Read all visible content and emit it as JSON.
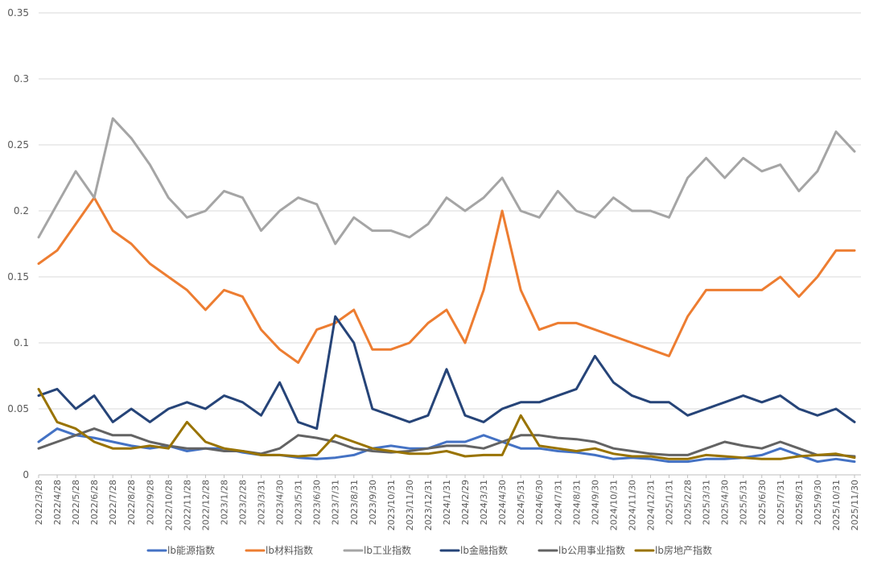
{
  "chart_data": {
    "type": "line",
    "title": "",
    "xlabel": "",
    "ylabel": "",
    "ylim": [
      0,
      0.35
    ],
    "yticks": [
      0,
      0.05,
      0.1,
      0.15,
      0.2,
      0.25,
      0.3,
      0.35
    ],
    "ytick_labels": [
      "0",
      "0.05",
      "0.1",
      "0.15",
      "0.2",
      "0.25",
      "0.3",
      "0.35"
    ],
    "x": [
      "2022/3/28",
      "2022/4/28",
      "2022/5/28",
      "2022/6/28",
      "2022/7/28",
      "2022/8/28",
      "2022/9/28",
      "2022/10/28",
      "2022/11/28",
      "2022/12/28",
      "2023/1/28",
      "2023/2/28",
      "2023/3/31",
      "2023/4/30",
      "2023/5/31",
      "2023/6/30",
      "2023/7/31",
      "2023/8/31",
      "2023/9/30",
      "2023/10/31",
      "2023/11/30",
      "2023/12/31",
      "2024/1/31",
      "2024/2/29",
      "2024/3/31",
      "2024/4/30",
      "2024/5/31",
      "2024/6/30",
      "2024/7/31",
      "2024/8/31",
      "2024/9/30",
      "2024/10/31",
      "2024/11/30",
      "2024/12/31",
      "2025/1/31",
      "2025/2/28",
      "2025/3/31",
      "2025/4/30",
      "2025/5/31",
      "2025/6/30",
      "2025/7/31",
      "2025/8/31",
      "2025/9/30",
      "2025/10/31",
      "2025/11/30"
    ],
    "grid": true,
    "legend_position": "bottom",
    "series": [
      {
        "name": "lb能源指数",
        "color": "#4472c4",
        "values": [
          0.025,
          0.035,
          0.03,
          0.028,
          0.025,
          0.022,
          0.02,
          0.022,
          0.018,
          0.02,
          0.02,
          0.017,
          0.015,
          0.015,
          0.013,
          0.012,
          0.013,
          0.015,
          0.02,
          0.022,
          0.02,
          0.02,
          0.025,
          0.025,
          0.03,
          0.025,
          0.02,
          0.02,
          0.018,
          0.017,
          0.015,
          0.012,
          0.013,
          0.012,
          0.01,
          0.01,
          0.012,
          0.012,
          0.013,
          0.015,
          0.02,
          0.015,
          0.01,
          0.012,
          0.01
        ]
      },
      {
        "name": "lb材料指数",
        "color": "#ed7d31",
        "values": [
          0.16,
          0.17,
          0.19,
          0.21,
          0.185,
          0.175,
          0.16,
          0.15,
          0.14,
          0.125,
          0.14,
          0.135,
          0.11,
          0.095,
          0.085,
          0.11,
          0.115,
          0.125,
          0.095,
          0.095,
          0.1,
          0.115,
          0.125,
          0.1,
          0.14,
          0.2,
          0.14,
          0.11,
          0.115,
          0.115,
          0.11,
          0.105,
          0.1,
          0.095,
          0.09,
          0.12,
          0.14,
          0.14,
          0.14,
          0.14,
          0.15,
          0.135,
          0.15,
          0.17,
          0.17
        ]
      },
      {
        "name": "lb工业指数",
        "color": "#a5a5a5",
        "values": [
          0.18,
          0.205,
          0.23,
          0.21,
          0.27,
          0.255,
          0.235,
          0.21,
          0.195,
          0.2,
          0.215,
          0.21,
          0.185,
          0.2,
          0.21,
          0.205,
          0.175,
          0.195,
          0.185,
          0.185,
          0.18,
          0.19,
          0.21,
          0.2,
          0.21,
          0.225,
          0.2,
          0.195,
          0.215,
          0.2,
          0.195,
          0.21,
          0.2,
          0.2,
          0.195,
          0.225,
          0.24,
          0.225,
          0.24,
          0.23,
          0.235,
          0.215,
          0.23,
          0.26,
          0.245
        ]
      },
      {
        "name": "lb金融指数",
        "color": "#264478",
        "values": [
          0.06,
          0.065,
          0.05,
          0.06,
          0.04,
          0.05,
          0.04,
          0.05,
          0.055,
          0.05,
          0.06,
          0.055,
          0.045,
          0.07,
          0.04,
          0.035,
          0.12,
          0.1,
          0.05,
          0.045,
          0.04,
          0.045,
          0.08,
          0.045,
          0.04,
          0.05,
          0.055,
          0.055,
          0.06,
          0.065,
          0.09,
          0.07,
          0.06,
          0.055,
          0.055,
          0.045,
          0.05,
          0.055,
          0.06,
          0.055,
          0.06,
          0.05,
          0.045,
          0.05,
          0.04
        ]
      },
      {
        "name": "lb公用事业指数",
        "color": "#636363",
        "values": [
          0.02,
          0.025,
          0.03,
          0.035,
          0.03,
          0.03,
          0.025,
          0.022,
          0.02,
          0.02,
          0.018,
          0.018,
          0.016,
          0.02,
          0.03,
          0.028,
          0.025,
          0.02,
          0.018,
          0.017,
          0.018,
          0.02,
          0.022,
          0.022,
          0.02,
          0.025,
          0.03,
          0.03,
          0.028,
          0.027,
          0.025,
          0.02,
          0.018,
          0.016,
          0.015,
          0.015,
          0.02,
          0.025,
          0.022,
          0.02,
          0.025,
          0.02,
          0.015,
          0.015,
          0.014
        ]
      },
      {
        "name": "lb房地产指数",
        "color": "#997300",
        "values": [
          0.065,
          0.04,
          0.035,
          0.025,
          0.02,
          0.02,
          0.022,
          0.02,
          0.04,
          0.025,
          0.02,
          0.018,
          0.015,
          0.015,
          0.014,
          0.015,
          0.03,
          0.025,
          0.02,
          0.018,
          0.016,
          0.016,
          0.018,
          0.014,
          0.015,
          0.015,
          0.045,
          0.022,
          0.02,
          0.018,
          0.02,
          0.016,
          0.014,
          0.014,
          0.012,
          0.012,
          0.015,
          0.014,
          0.013,
          0.012,
          0.012,
          0.014,
          0.015,
          0.016,
          0.013
        ]
      }
    ]
  }
}
